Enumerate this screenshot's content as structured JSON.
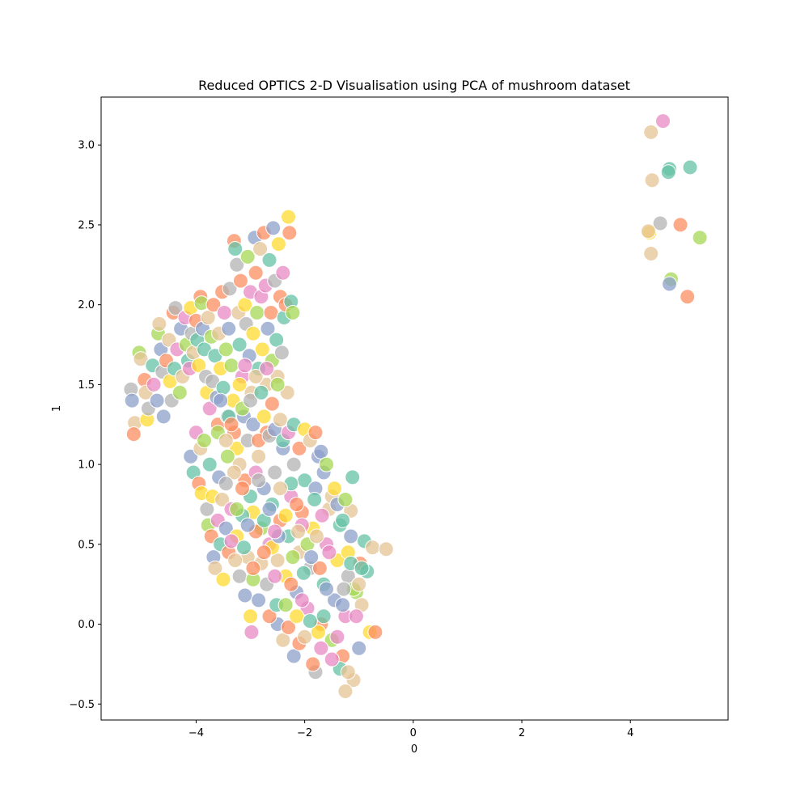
{
  "chart_data": {
    "type": "scatter",
    "title": "Reduced OPTICS 2-D Visualisation using PCA of mushroom dataset",
    "xlabel": "0",
    "ylabel": "1",
    "xlim": [
      -5.75,
      5.8
    ],
    "ylim": [
      -0.6,
      3.3
    ],
    "xticks": [
      -4,
      -2,
      0,
      2,
      4
    ],
    "yticks": [
      -0.5,
      0.0,
      0.5,
      1.0,
      1.5,
      2.0,
      2.5,
      3.0
    ],
    "grid": false,
    "legend": "none",
    "palette": [
      "#66c2a5",
      "#fc8d62",
      "#8da0cb",
      "#e78ac3",
      "#a6d854",
      "#ffd92f",
      "#e5c494",
      "#b3b3b3"
    ],
    "point_opacity": 0.75,
    "points": [
      [
        4.6,
        3.15,
        3
      ],
      [
        4.38,
        3.08,
        6
      ],
      [
        4.72,
        2.85,
        0
      ],
      [
        4.7,
        2.83,
        0
      ],
      [
        5.1,
        2.86,
        0
      ],
      [
        4.4,
        2.78,
        6
      ],
      [
        4.55,
        2.51,
        7
      ],
      [
        4.92,
        2.5,
        1
      ],
      [
        4.35,
        2.45,
        5
      ],
      [
        4.33,
        2.46,
        6
      ],
      [
        5.28,
        2.42,
        4
      ],
      [
        4.38,
        2.32,
        6
      ],
      [
        4.75,
        2.16,
        4
      ],
      [
        4.72,
        2.13,
        2
      ],
      [
        5.05,
        2.05,
        1
      ],
      [
        -5.2,
        1.47,
        7
      ],
      [
        -5.18,
        1.4,
        2
      ],
      [
        -5.13,
        1.26,
        6
      ],
      [
        -5.15,
        1.19,
        1
      ],
      [
        -5.05,
        1.7,
        4
      ],
      [
        -5.02,
        1.66,
        6
      ],
      [
        -4.95,
        1.53,
        1
      ],
      [
        -4.93,
        1.45,
        6
      ],
      [
        -4.9,
        1.28,
        5
      ],
      [
        -4.88,
        1.35,
        7
      ],
      [
        -4.8,
        1.62,
        0
      ],
      [
        -4.78,
        1.5,
        3
      ],
      [
        -4.72,
        1.4,
        2
      ],
      [
        -4.7,
        1.82,
        4
      ],
      [
        -4.68,
        1.88,
        6
      ],
      [
        -4.65,
        1.72,
        2
      ],
      [
        -4.62,
        1.58,
        7
      ],
      [
        -4.6,
        1.3,
        2
      ],
      [
        -4.55,
        1.65,
        1
      ],
      [
        -4.5,
        1.78,
        6
      ],
      [
        -4.48,
        1.52,
        5
      ],
      [
        -4.45,
        1.4,
        7
      ],
      [
        -4.42,
        1.95,
        1
      ],
      [
        -4.4,
        1.6,
        0
      ],
      [
        -4.38,
        1.98,
        7
      ],
      [
        -4.35,
        1.72,
        3
      ],
      [
        -4.3,
        1.45,
        4
      ],
      [
        -4.28,
        1.85,
        2
      ],
      [
        -4.25,
        1.55,
        6
      ],
      [
        -4.2,
        1.92,
        3
      ],
      [
        -4.18,
        1.75,
        4
      ],
      [
        -4.15,
        1.65,
        0
      ],
      [
        -4.12,
        1.6,
        3
      ],
      [
        -4.1,
        1.98,
        5
      ],
      [
        -4.08,
        1.82,
        7
      ],
      [
        -4.05,
        1.7,
        6
      ],
      [
        -4.0,
        1.9,
        1
      ],
      [
        -3.98,
        1.78,
        0
      ],
      [
        -3.95,
        1.62,
        5
      ],
      [
        -3.92,
        2.05,
        1
      ],
      [
        -3.9,
        2.01,
        4
      ],
      [
        -3.88,
        1.85,
        2
      ],
      [
        -3.85,
        1.72,
        0
      ],
      [
        -3.82,
        1.55,
        7
      ],
      [
        -3.8,
        1.45,
        5
      ],
      [
        -3.78,
        1.92,
        6
      ],
      [
        -3.75,
        1.35,
        3
      ],
      [
        -3.72,
        1.8,
        4
      ],
      [
        -3.7,
        1.52,
        7
      ],
      [
        -3.68,
        2.0,
        1
      ],
      [
        -3.65,
        1.68,
        0
      ],
      [
        -3.62,
        1.42,
        2
      ],
      [
        -3.6,
        1.25,
        1
      ],
      [
        -3.58,
        1.82,
        6
      ],
      [
        -3.55,
        1.6,
        5
      ],
      [
        -3.52,
        2.08,
        1
      ],
      [
        -3.5,
        1.48,
        0
      ],
      [
        -3.48,
        1.95,
        3
      ],
      [
        -3.45,
        1.72,
        4
      ],
      [
        -3.42,
        1.3,
        7
      ],
      [
        -3.4,
        1.85,
        2
      ],
      [
        -3.38,
        2.1,
        7
      ],
      [
        -3.35,
        1.62,
        4
      ],
      [
        -3.32,
        1.4,
        5
      ],
      [
        -3.3,
        2.4,
        1
      ],
      [
        -3.28,
        2.35,
        0
      ],
      [
        -3.25,
        2.25,
        7
      ],
      [
        -3.22,
        1.95,
        6
      ],
      [
        -3.2,
        1.75,
        0
      ],
      [
        -3.18,
        2.15,
        1
      ],
      [
        -3.15,
        1.55,
        3
      ],
      [
        -3.12,
        1.3,
        2
      ],
      [
        -3.1,
        2.0,
        5
      ],
      [
        -3.08,
        1.88,
        7
      ],
      [
        -3.05,
        2.3,
        4
      ],
      [
        -3.02,
        1.68,
        2
      ],
      [
        -3.0,
        2.08,
        3
      ],
      [
        -2.98,
        1.45,
        6
      ],
      [
        -2.95,
        1.82,
        5
      ],
      [
        -2.92,
        2.42,
        2
      ],
      [
        -2.9,
        2.2,
        1
      ],
      [
        -2.88,
        1.95,
        4
      ],
      [
        -2.85,
        1.6,
        0
      ],
      [
        -2.82,
        2.35,
        6
      ],
      [
        -2.8,
        2.05,
        3
      ],
      [
        -2.78,
        1.72,
        5
      ],
      [
        -2.75,
        2.45,
        1
      ],
      [
        -2.72,
        2.12,
        3
      ],
      [
        -2.7,
        1.5,
        6
      ],
      [
        -2.68,
        1.85,
        2
      ],
      [
        -2.65,
        2.28,
        0
      ],
      [
        -2.62,
        1.95,
        1
      ],
      [
        -2.6,
        1.65,
        4
      ],
      [
        -2.58,
        2.48,
        2
      ],
      [
        -2.55,
        2.15,
        7
      ],
      [
        -2.52,
        1.78,
        0
      ],
      [
        -2.5,
        1.55,
        6
      ],
      [
        -2.48,
        2.38,
        5
      ],
      [
        -2.45,
        2.05,
        1
      ],
      [
        -2.42,
        1.7,
        7
      ],
      [
        -2.4,
        2.2,
        3
      ],
      [
        -2.38,
        1.92,
        0
      ],
      [
        -2.35,
        2.0,
        1
      ],
      [
        -2.32,
        1.45,
        6
      ],
      [
        -2.3,
        2.55,
        5
      ],
      [
        -2.28,
        2.45,
        1
      ],
      [
        -2.25,
        2.02,
        0
      ],
      [
        -2.22,
        1.95,
        4
      ],
      [
        -3.3,
        1.2,
        1
      ],
      [
        -3.25,
        1.1,
        5
      ],
      [
        -3.2,
        1.0,
        6
      ],
      [
        -3.1,
        0.9,
        1
      ],
      [
        -3.05,
        1.15,
        7
      ],
      [
        -3.0,
        0.8,
        0
      ],
      [
        -2.95,
        0.7,
        5
      ],
      [
        -2.9,
        0.95,
        3
      ],
      [
        -2.85,
        1.05,
        6
      ],
      [
        -2.8,
        0.6,
        4
      ],
      [
        -2.75,
        0.85,
        2
      ],
      [
        -2.7,
        1.2,
        1
      ],
      [
        -2.65,
        0.5,
        3
      ],
      [
        -2.6,
        0.75,
        0
      ],
      [
        -2.55,
        0.95,
        7
      ],
      [
        -2.5,
        0.4,
        6
      ],
      [
        -2.45,
        0.65,
        1
      ],
      [
        -2.4,
        1.1,
        2
      ],
      [
        -2.35,
        0.3,
        5
      ],
      [
        -2.3,
        0.55,
        0
      ],
      [
        -2.25,
        0.8,
        3
      ],
      [
        -2.2,
        1.0,
        7
      ],
      [
        -2.15,
        0.2,
        2
      ],
      [
        -2.1,
        0.45,
        6
      ],
      [
        -2.05,
        0.7,
        1
      ],
      [
        -2.0,
        0.9,
        0
      ],
      [
        -1.95,
        0.1,
        3
      ],
      [
        -1.9,
        0.35,
        7
      ],
      [
        -1.85,
        0.6,
        5
      ],
      [
        -1.8,
        0.85,
        2
      ],
      [
        -1.75,
        1.05,
        2
      ],
      [
        -1.7,
        0.0,
        1
      ],
      [
        -1.65,
        0.25,
        0
      ],
      [
        -1.6,
        0.5,
        3
      ],
      [
        -1.55,
        0.72,
        6
      ],
      [
        -1.5,
        -0.1,
        4
      ],
      [
        -1.45,
        0.15,
        2
      ],
      [
        -1.4,
        0.4,
        5
      ],
      [
        -1.35,
        0.62,
        0
      ],
      [
        -1.3,
        -0.2,
        1
      ],
      [
        -1.25,
        0.05,
        3
      ],
      [
        -1.2,
        0.3,
        7
      ],
      [
        -1.15,
        0.55,
        2
      ],
      [
        -1.12,
        0.92,
        0
      ],
      [
        -1.1,
        -0.35,
        6
      ],
      [
        -1.05,
        0.2,
        4
      ],
      [
        -1.0,
        -0.15,
        2
      ],
      [
        -0.98,
        0.38,
        1
      ],
      [
        -0.95,
        0.12,
        6
      ],
      [
        -0.9,
        0.52,
        0
      ],
      [
        -0.85,
        0.33,
        0
      ],
      [
        -0.8,
        -0.05,
        5
      ],
      [
        -0.75,
        0.48,
        6
      ],
      [
        -0.7,
        -0.05,
        1
      ],
      [
        -0.5,
        0.47,
        6
      ],
      [
        -1.15,
        0.71,
        6
      ],
      [
        -1.25,
        -0.42,
        6
      ],
      [
        -1.8,
        -0.3,
        7
      ],
      [
        -1.85,
        -0.25,
        1
      ],
      [
        -2.2,
        -0.2,
        2
      ],
      [
        -2.1,
        -0.12,
        1
      ],
      [
        -2.4,
        -0.1,
        6
      ],
      [
        -2.5,
        0.0,
        2
      ],
      [
        -2.3,
        -0.02,
        1
      ],
      [
        -4.1,
        1.05,
        2
      ],
      [
        -4.05,
        0.95,
        0
      ],
      [
        -4.0,
        1.2,
        3
      ],
      [
        -3.95,
        0.88,
        1
      ],
      [
        -3.92,
        1.1,
        6
      ],
      [
        -3.9,
        0.82,
        5
      ],
      [
        -3.85,
        1.15,
        4
      ],
      [
        -3.8,
        0.72,
        7
      ],
      [
        -3.78,
        0.62,
        4
      ],
      [
        -3.75,
        1.0,
        0
      ],
      [
        -3.72,
        0.55,
        1
      ],
      [
        -3.7,
        0.8,
        5
      ],
      [
        -3.68,
        0.42,
        2
      ],
      [
        -3.65,
        0.35,
        6
      ],
      [
        -3.6,
        0.65,
        3
      ],
      [
        -3.58,
        0.92,
        2
      ],
      [
        -3.55,
        0.5,
        0
      ],
      [
        -3.52,
        0.78,
        6
      ],
      [
        -3.5,
        0.28,
        5
      ],
      [
        -3.45,
        0.6,
        2
      ],
      [
        -3.42,
        1.05,
        4
      ],
      [
        -3.4,
        0.45,
        1
      ],
      [
        -3.35,
        0.72,
        3
      ],
      [
        -3.3,
        0.95,
        6
      ],
      [
        -3.25,
        0.55,
        5
      ],
      [
        -3.2,
        0.3,
        7
      ],
      [
        -3.15,
        0.68,
        0
      ],
      [
        -3.1,
        0.18,
        2
      ],
      [
        -3.05,
        0.42,
        6
      ],
      [
        -3.0,
        0.05,
        5
      ],
      [
        -2.98,
        -0.05,
        3
      ],
      [
        -2.95,
        0.28,
        4
      ],
      [
        -2.9,
        0.58,
        1
      ],
      [
        -2.85,
        0.15,
        2
      ],
      [
        -2.8,
        0.38,
        6
      ],
      [
        -2.75,
        0.65,
        0
      ],
      [
        -2.7,
        0.25,
        7
      ],
      [
        -2.65,
        0.05,
        1
      ],
      [
        -2.6,
        0.48,
        5
      ],
      [
        -2.55,
        0.3,
        3
      ],
      [
        -2.52,
        0.12,
        0
      ],
      [
        -2.48,
        0.55,
        2
      ],
      [
        -3.55,
        1.4,
        2
      ],
      [
        -3.6,
        1.2,
        4
      ],
      [
        -3.45,
        1.15,
        6
      ],
      [
        -3.4,
        1.3,
        0
      ],
      [
        -3.35,
        1.25,
        1
      ],
      [
        -3.2,
        1.5,
        5
      ],
      [
        -3.15,
        1.35,
        4
      ],
      [
        -3.1,
        1.62,
        3
      ],
      [
        -3.0,
        1.4,
        7
      ],
      [
        -2.95,
        1.25,
        2
      ],
      [
        -2.9,
        1.55,
        6
      ],
      [
        -2.85,
        1.15,
        1
      ],
      [
        -2.8,
        1.45,
        0
      ],
      [
        -2.75,
        1.3,
        5
      ],
      [
        -2.7,
        1.6,
        3
      ],
      [
        -2.65,
        1.18,
        7
      ],
      [
        -2.6,
        1.38,
        1
      ],
      [
        -2.55,
        1.22,
        2
      ],
      [
        -2.5,
        1.5,
        4
      ],
      [
        -2.45,
        1.28,
        6
      ],
      [
        -2.4,
        1.15,
        0
      ],
      [
        -2.3,
        1.2,
        3
      ],
      [
        -2.2,
        1.25,
        0
      ],
      [
        -2.1,
        1.1,
        1
      ],
      [
        -2.0,
        1.22,
        5
      ],
      [
        -1.9,
        1.15,
        6
      ],
      [
        -1.8,
        1.2,
        1
      ],
      [
        -1.7,
        1.08,
        2
      ],
      [
        -1.65,
        0.95,
        2
      ],
      [
        -1.6,
        1.0,
        4
      ],
      [
        -1.5,
        0.8,
        6
      ],
      [
        -1.45,
        0.85,
        5
      ],
      [
        -1.4,
        0.75,
        2
      ],
      [
        -1.3,
        0.65,
        0
      ],
      [
        -1.25,
        0.78,
        4
      ],
      [
        -1.2,
        0.45,
        5
      ],
      [
        -1.15,
        0.38,
        0
      ],
      [
        -1.1,
        0.22,
        4
      ],
      [
        -1.05,
        0.05,
        3
      ],
      [
        -1.0,
        0.25,
        6
      ],
      [
        -0.95,
        0.35,
        0
      ],
      [
        -1.55,
        0.45,
        3
      ],
      [
        -1.6,
        0.22,
        2
      ],
      [
        -1.65,
        0.05,
        0
      ],
      [
        -1.7,
        -0.15,
        3
      ],
      [
        -1.75,
        -0.05,
        5
      ],
      [
        -1.9,
        0.02,
        0
      ],
      [
        -2.0,
        -0.08,
        6
      ],
      [
        -2.05,
        0.15,
        3
      ],
      [
        -2.15,
        0.05,
        5
      ],
      [
        -2.25,
        0.25,
        1
      ],
      [
        -2.35,
        0.12,
        4
      ],
      [
        -1.4,
        -0.08,
        3
      ],
      [
        -1.35,
        -0.28,
        0
      ],
      [
        -1.5,
        -0.22,
        3
      ],
      [
        -1.3,
        0.12,
        2
      ],
      [
        -1.2,
        -0.3,
        6
      ],
      [
        -1.28,
        0.22,
        7
      ],
      [
        -1.95,
        0.5,
        4
      ],
      [
        -2.05,
        0.62,
        3
      ],
      [
        -2.15,
        0.75,
        1
      ],
      [
        -2.25,
        0.88,
        0
      ],
      [
        -2.35,
        0.68,
        5
      ],
      [
        -2.45,
        0.85,
        6
      ],
      [
        -2.55,
        0.58,
        3
      ],
      [
        -2.65,
        0.72,
        2
      ],
      [
        -2.75,
        0.45,
        1
      ],
      [
        -2.85,
        0.9,
        7
      ],
      [
        -3.05,
        0.62,
        2
      ],
      [
        -3.15,
        0.85,
        1
      ],
      [
        -3.25,
        0.72,
        4
      ],
      [
        -3.35,
        0.52,
        3
      ],
      [
        -3.45,
        0.88,
        7
      ],
      [
        -3.28,
        0.4,
        6
      ],
      [
        -3.12,
        0.48,
        0
      ],
      [
        -2.95,
        0.35,
        1
      ],
      [
        -1.78,
        0.55,
        6
      ],
      [
        -1.72,
        0.35,
        1
      ],
      [
        -1.68,
        0.68,
        3
      ],
      [
        -1.82,
        0.78,
        0
      ],
      [
        -1.88,
        0.42,
        2
      ],
      [
        -2.02,
        0.32,
        0
      ],
      [
        -2.12,
        0.58,
        6
      ],
      [
        -2.22,
        0.42,
        4
      ]
    ]
  }
}
